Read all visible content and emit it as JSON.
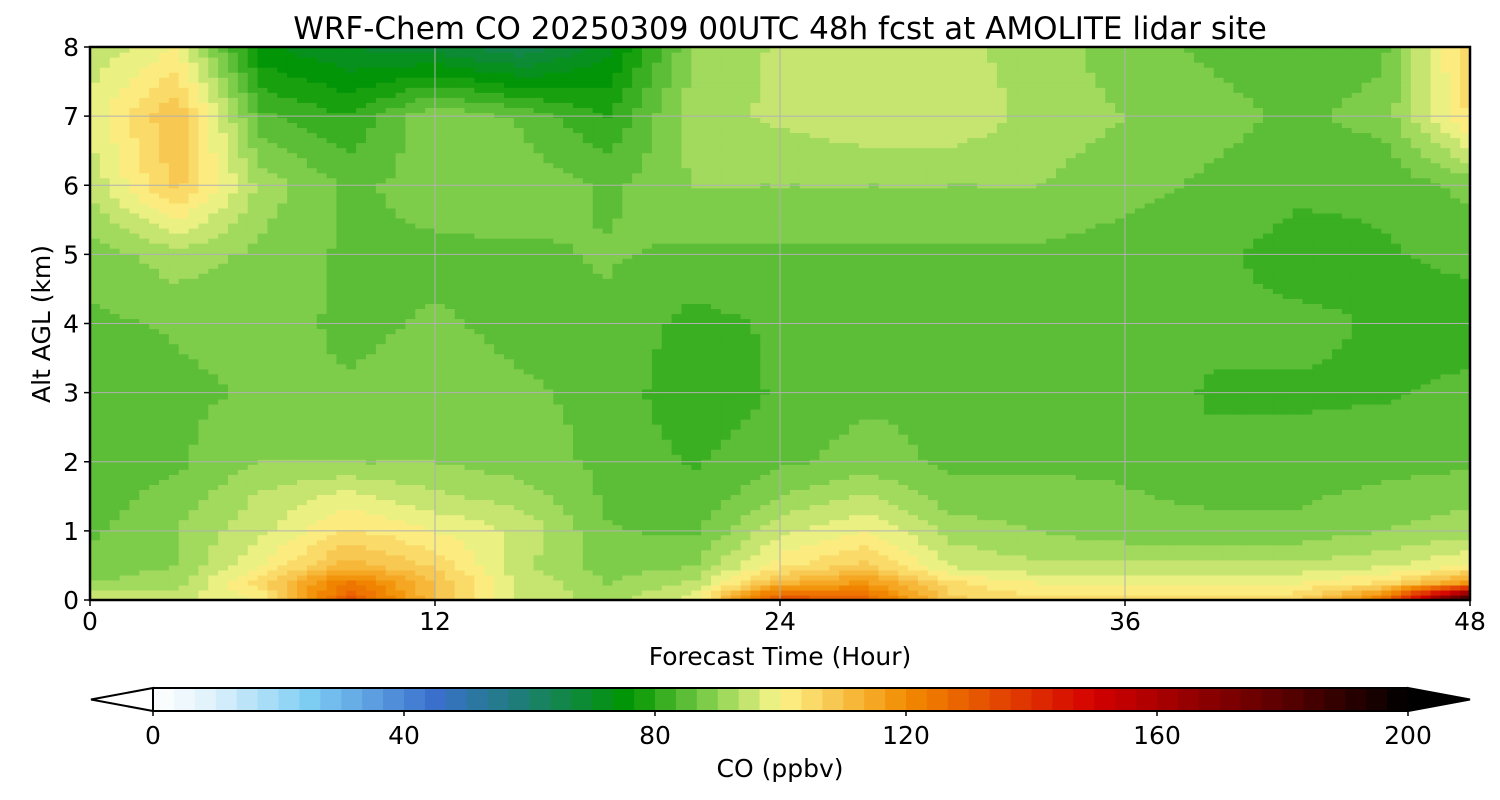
{
  "chart_data": {
    "type": "heatmap",
    "title": "WRF-Chem CO  20250309 00UTC 48h fcst at AMOLITE lidar site",
    "xlabel": "Forecast Time (Hour)",
    "ylabel": "Alt AGL (km)",
    "xlim": [
      0,
      48
    ],
    "ylim": [
      0,
      8
    ],
    "xticks": [
      0,
      12,
      24,
      36,
      48
    ],
    "yticks": [
      0,
      1,
      2,
      3,
      4,
      5,
      6,
      7,
      8
    ],
    "grid": true,
    "x": [
      0,
      3,
      6,
      9,
      12,
      15,
      18,
      21,
      24,
      27,
      30,
      33,
      36,
      39,
      42,
      45,
      48
    ],
    "y": [
      0,
      0.25,
      0.5,
      1,
      1.5,
      2,
      3,
      4,
      5,
      6,
      7,
      8
    ],
    "z": [
      [
        97,
        96,
        100,
        132,
        110,
        96,
        92,
        98,
        135,
        128,
        108,
        104,
        104,
        104,
        106,
        125,
        198
      ],
      [
        90,
        92,
        106,
        124,
        110,
        96,
        90,
        94,
        112,
        118,
        104,
        100,
        100,
        100,
        100,
        104,
        118
      ],
      [
        88,
        90,
        100,
        112,
        106,
        94,
        88,
        90,
        102,
        108,
        96,
        94,
        94,
        94,
        94,
        96,
        100
      ],
      [
        86,
        90,
        96,
        104,
        100,
        96,
        87,
        86,
        96,
        100,
        92,
        90,
        88,
        88,
        88,
        90,
        92
      ],
      [
        85,
        88,
        94,
        98,
        94,
        92,
        86,
        84,
        90,
        94,
        88,
        88,
        87,
        86,
        86,
        88,
        89
      ],
      [
        84,
        86,
        90,
        90,
        90,
        88,
        86,
        83,
        86,
        88,
        86,
        86,
        86,
        84,
        84,
        85,
        86
      ],
      [
        84,
        86,
        87,
        87,
        88,
        87,
        86,
        80,
        84,
        86,
        86,
        86,
        85,
        83,
        83,
        83,
        84
      ],
      [
        86,
        87,
        88,
        86,
        87,
        86,
        86,
        82,
        84,
        86,
        85,
        85,
        85,
        84,
        84,
        83,
        82
      ],
      [
        88,
        92,
        89,
        86,
        86,
        86,
        87,
        86,
        86,
        86,
        86,
        86,
        85,
        84,
        82,
        83,
        84
      ],
      [
        94,
        108,
        92,
        86,
        88,
        89,
        86,
        90,
        90,
        90,
        90,
        90,
        88,
        86,
        84,
        84,
        88
      ],
      [
        98,
        110,
        84,
        80,
        90,
        86,
        80,
        92,
        94,
        96,
        96,
        92,
        90,
        88,
        86,
        88,
        104
      ],
      [
        94,
        100,
        74,
        70,
        68,
        64,
        72,
        90,
        94,
        96,
        94,
        92,
        88,
        86,
        84,
        86,
        106
      ]
    ],
    "colorbar": {
      "label": "CO  (ppbv)",
      "min": 0,
      "max": 200,
      "ticks": [
        0,
        40,
        80,
        120,
        160,
        200
      ],
      "extend": "both",
      "levels": 60,
      "stops": [
        [
          0,
          "#ffffff"
        ],
        [
          10,
          "#dcf0fb"
        ],
        [
          25,
          "#7dcdf3"
        ],
        [
          45,
          "#3a6fcc"
        ],
        [
          58,
          "#1f7d7a"
        ],
        [
          76,
          "#009600"
        ],
        [
          90,
          "#8fd454"
        ],
        [
          100,
          "#fdf58c"
        ],
        [
          120,
          "#f28c00"
        ],
        [
          150,
          "#d40000"
        ],
        [
          180,
          "#5a0000"
        ],
        [
          200,
          "#000000"
        ]
      ]
    }
  }
}
